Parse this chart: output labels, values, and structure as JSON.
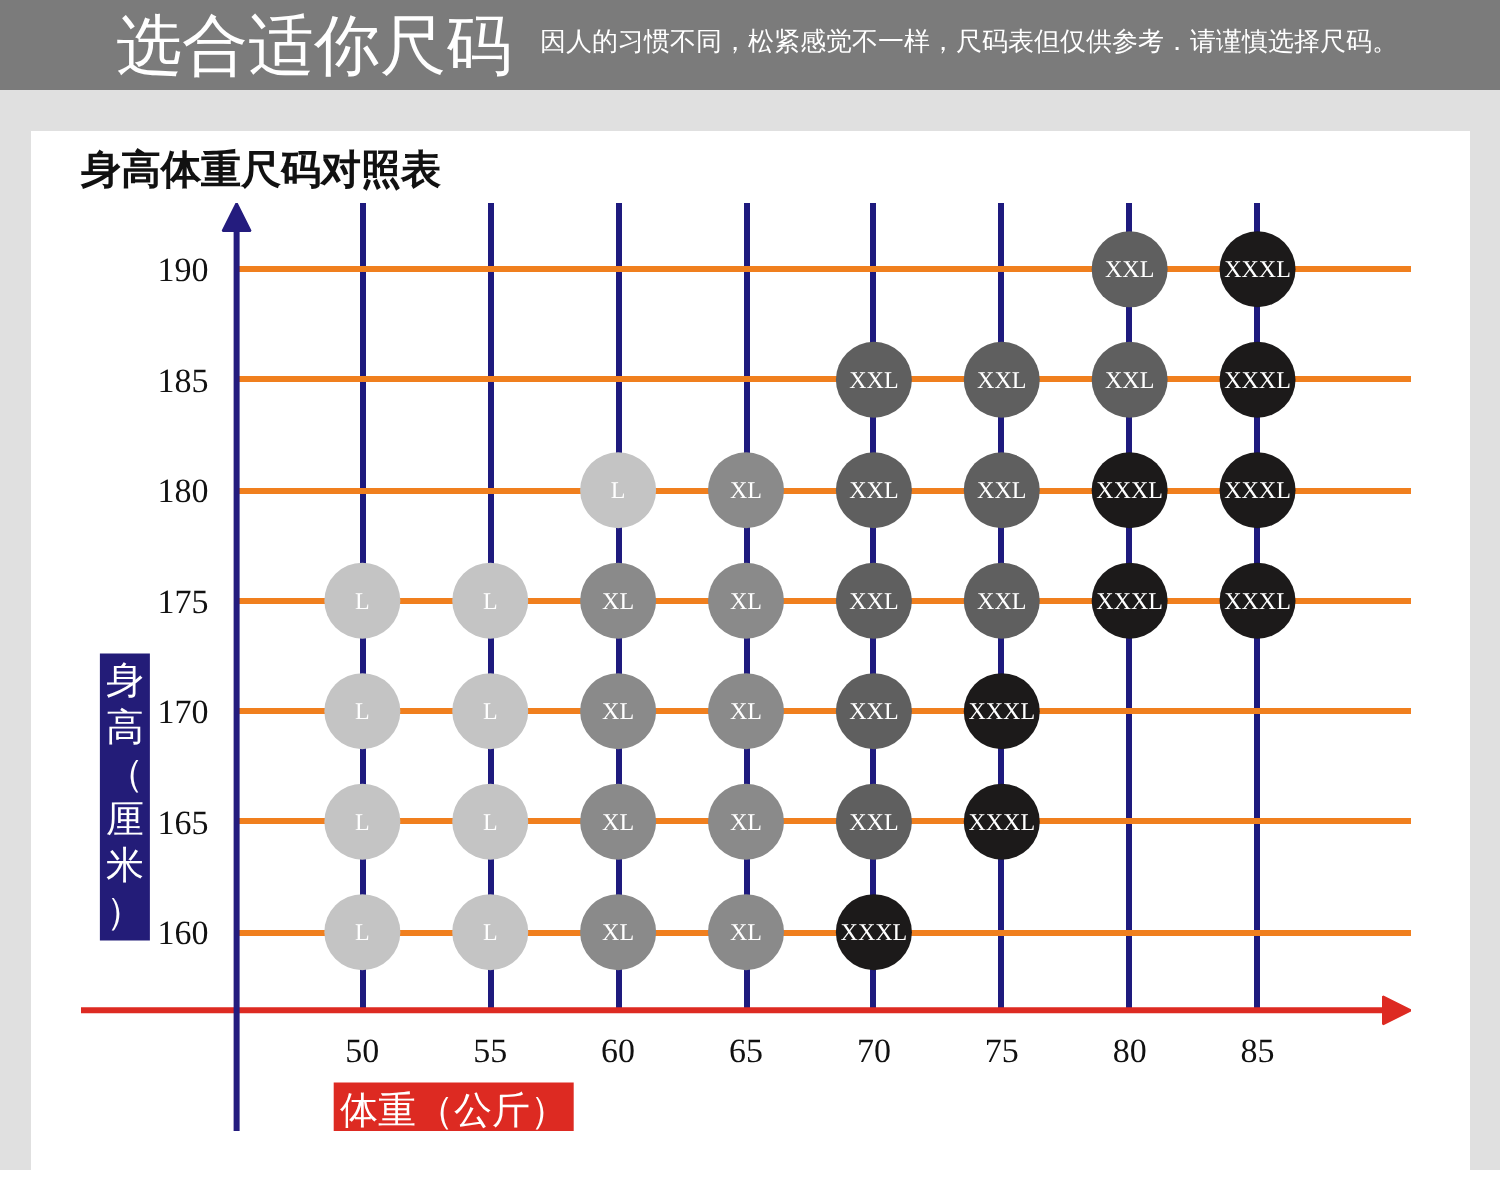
{
  "chart_data": {
    "type": "scatter",
    "title": "选合适你尺码",
    "subtitle": "因人的习惯不同，松紧感觉不一样，尺码表但仅供参考．请谨慎选择尺码。",
    "annotations": [
      "身高体重尺码对照表"
    ],
    "xlabel": "体重（公斤）",
    "ylabel": "身高（厘米）",
    "xlim": [
      39,
      91
    ],
    "ylim": [
      151,
      193
    ],
    "xticks": [
      50,
      55,
      60,
      65,
      70,
      75,
      80,
      85
    ],
    "yticks": [
      160,
      165,
      170,
      175,
      180,
      185,
      190
    ],
    "grid": true,
    "marker": "circle",
    "series": [
      {
        "name": "L",
        "color": "#c4c4c4",
        "x": [
          60,
          50,
          55,
          50,
          55,
          50,
          55,
          50,
          55
        ],
        "values": [
          180,
          175,
          175,
          170,
          170,
          165,
          165,
          160,
          160
        ]
      },
      {
        "name": "XL",
        "color": "#8a8a8a",
        "x": [
          65,
          60,
          65,
          60,
          65,
          60,
          65,
          60,
          65
        ],
        "values": [
          180,
          175,
          175,
          170,
          170,
          165,
          165,
          160,
          160
        ]
      },
      {
        "name": "XXL",
        "color": "#5f5f5f",
        "x": [
          80,
          70,
          75,
          80,
          70,
          75,
          70,
          75,
          70,
          70
        ],
        "values": [
          190,
          185,
          185,
          185,
          180,
          180,
          175,
          175,
          170,
          165
        ]
      },
      {
        "name": "XXXL",
        "color": "#1c1a1a",
        "x": [
          85,
          85,
          80,
          85,
          80,
          85,
          75,
          75,
          70
        ],
        "values": [
          190,
          185,
          180,
          180,
          175,
          175,
          170,
          165,
          160
        ]
      }
    ]
  }
}
